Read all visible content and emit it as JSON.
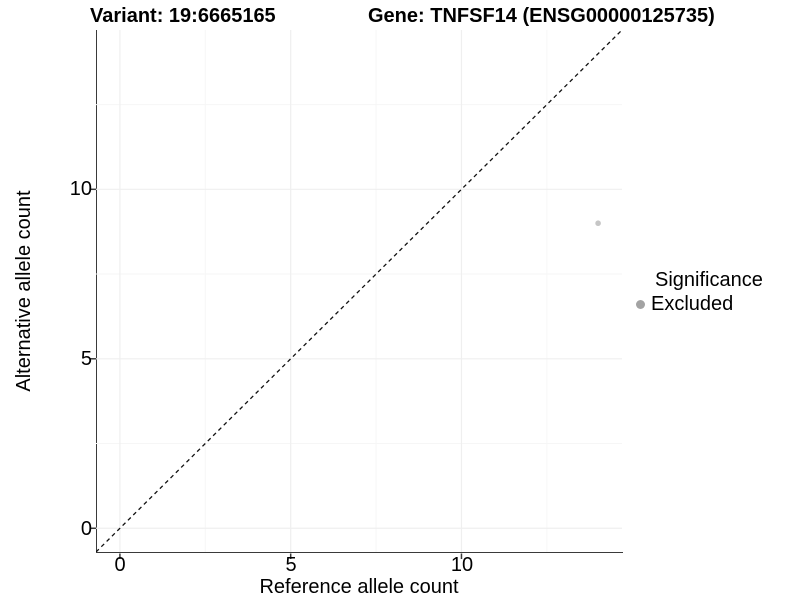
{
  "header": {
    "variant_title": "Variant: 19:6665165",
    "gene_title": "Gene: TNFSF14 (ENSG00000125735)"
  },
  "chart_data": {
    "type": "scatter",
    "title": "Variant: 19:6665165 / Gene: TNFSF14 (ENSG00000125735)",
    "xlabel": "Reference allele count",
    "ylabel": "Alternative allele count",
    "xlim": [
      -0.7,
      14.7
    ],
    "ylim": [
      -0.7,
      14.7
    ],
    "x_tick_values": [
      0,
      5,
      10
    ],
    "x_tick_labels": [
      "0",
      "5",
      "10"
    ],
    "y_tick_values": [
      0,
      5,
      10
    ],
    "y_tick_labels": [
      "0",
      "5",
      "10"
    ],
    "x_minor_tick_values": [
      2.5,
      7.5,
      12.5
    ],
    "y_minor_tick_values": [
      2.5,
      7.5,
      12.5
    ],
    "grid": true,
    "points": [
      {
        "x": 14,
        "y": 9,
        "series": "Excluded"
      }
    ],
    "reference_line": {
      "slope": 1,
      "intercept": 0,
      "linetype": "dashed"
    },
    "legend": {
      "title": "Significance",
      "position": "right",
      "entries": [
        {
          "label": "Excluded",
          "color": "#a3a3a3"
        }
      ]
    }
  },
  "colors": {
    "point": "#c6c6c6",
    "legend_point": "#a3a3a3",
    "grid_major": "#efefef",
    "grid_minor": "#f6f6f6",
    "axis_line": "#3a3a3a",
    "reference_line": "#111111",
    "text": "#000000"
  }
}
